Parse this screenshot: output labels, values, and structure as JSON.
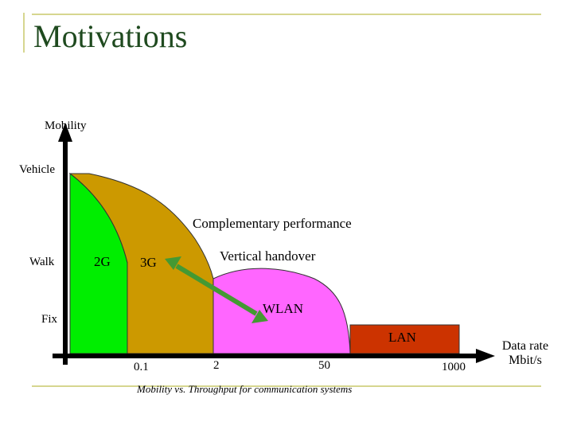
{
  "slide": {
    "title": "Motivations",
    "caption": "Mobility vs. Throughput for communication systems"
  },
  "axes": {
    "y_label": "Mobility",
    "x_label_line1": "Data rate",
    "x_label_line2": "Mbit/s",
    "y_levels": [
      "Vehicle",
      "Walk",
      "Fix"
    ],
    "x_ticks": [
      "0.1",
      "2",
      "50",
      "1000"
    ]
  },
  "regions": {
    "g2": "2G",
    "g3": "3G",
    "wlan": "WLAN",
    "lan": "LAN"
  },
  "annotations": {
    "complementary": "Complementary performance",
    "vertical_handover": "Vertical handover"
  },
  "colors": {
    "title": "#1f4a1f",
    "accent_line": "#c8c86a",
    "region_2g": "#00ee00",
    "region_3g": "#cc9900",
    "region_wlan": "#ff66ff",
    "region_lan": "#cc3300",
    "handover_arrow": "#449933"
  }
}
